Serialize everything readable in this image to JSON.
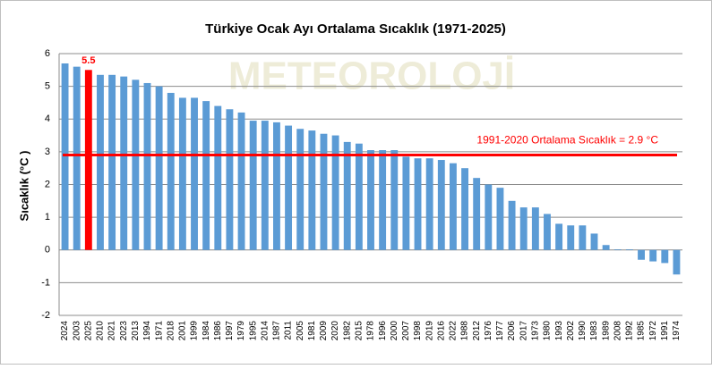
{
  "chart_data": {
    "type": "bar",
    "title": "Türkiye Ocak Ayı Ortalama Sıcaklık (1971-2025)",
    "y_label": "Sıcaklık (°C )",
    "watermark": "METEOROLOJİ",
    "categories": [
      "2024",
      "2003",
      "2025",
      "2010",
      "2021",
      "2023",
      "2013",
      "1994",
      "1971",
      "2018",
      "2001",
      "1999",
      "1984",
      "1986",
      "1997",
      "1979",
      "1995",
      "2014",
      "1987",
      "2011",
      "2005",
      "1981",
      "2009",
      "2020",
      "1982",
      "2015",
      "1978",
      "1996",
      "2000",
      "2007",
      "1998",
      "2019",
      "2016",
      "2022",
      "1988",
      "2012",
      "1976",
      "1977",
      "2006",
      "2017",
      "1973",
      "1980",
      "1993",
      "2002",
      "1990",
      "1983",
      "1989",
      "2008",
      "1992",
      "1985",
      "1972",
      "1991",
      "1974"
    ],
    "values": [
      5.7,
      5.6,
      5.5,
      5.35,
      5.35,
      5.3,
      5.2,
      5.1,
      5.0,
      4.8,
      4.65,
      4.65,
      4.55,
      4.4,
      4.3,
      4.2,
      3.95,
      3.95,
      3.9,
      3.8,
      3.7,
      3.65,
      3.55,
      3.5,
      3.3,
      3.25,
      3.05,
      3.05,
      3.05,
      2.85,
      2.8,
      2.8,
      2.75,
      2.65,
      2.5,
      2.2,
      2.0,
      1.9,
      1.5,
      1.3,
      1.3,
      1.1,
      0.8,
      0.75,
      0.75,
      0.5,
      0.15,
      0.02,
      0.02,
      -0.3,
      -0.35,
      -0.4,
      -0.75
    ],
    "color": "#5b9bd5",
    "highlight": {
      "index": 2,
      "color": "#ff0000"
    },
    "reference_line": {
      "value": 2.9,
      "label": "1991-2020 Ortalama Sıcaklık = 2.9 °C",
      "color": "#ff0000"
    },
    "ylim": [
      -2,
      6
    ],
    "yticks": [
      -2,
      -1,
      0,
      1,
      2,
      3,
      4,
      5,
      6
    ],
    "grid": true
  }
}
